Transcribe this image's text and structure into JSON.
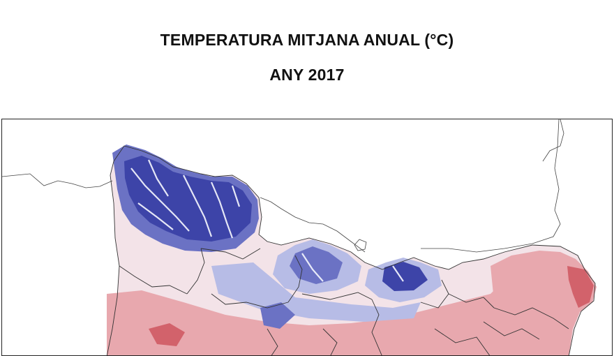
{
  "title": "TEMPERATURA MITJANA ANUAL (°C)",
  "subtitle": "ANY 2017",
  "map": {
    "colors": {
      "coldest": "#3d44a8",
      "cold": "#6b72c4",
      "cool": "#b7bce6",
      "mild": "#f3e3e8",
      "warm": "#e8a8ae",
      "warmest": "#d2626b",
      "boundary": "#333333",
      "sea": "#ffffff"
    }
  }
}
